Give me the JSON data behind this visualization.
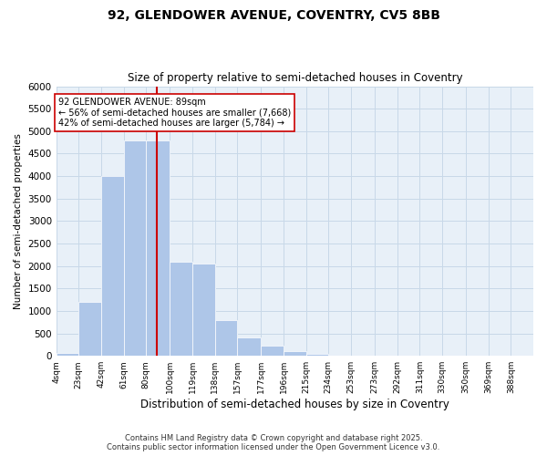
{
  "title1": "92, GLENDOWER AVENUE, COVENTRY, CV5 8BB",
  "title2": "Size of property relative to semi-detached houses in Coventry",
  "xlabel": "Distribution of semi-detached houses by size in Coventry",
  "ylabel": "Number of semi-detached properties",
  "footer": "Contains HM Land Registry data © Crown copyright and database right 2025.\nContains public sector information licensed under the Open Government Licence v3.0.",
  "bin_labels": [
    "4sqm",
    "23sqm",
    "42sqm",
    "61sqm",
    "80sqm",
    "100sqm",
    "119sqm",
    "138sqm",
    "157sqm",
    "177sqm",
    "196sqm",
    "215sqm",
    "234sqm",
    "253sqm",
    "273sqm",
    "292sqm",
    "311sqm",
    "330sqm",
    "350sqm",
    "369sqm",
    "388sqm"
  ],
  "bin_edges": [
    4,
    23,
    42,
    61,
    80,
    100,
    119,
    138,
    157,
    177,
    196,
    215,
    234,
    253,
    273,
    292,
    311,
    330,
    350,
    369,
    388
  ],
  "bar_values": [
    75,
    1200,
    4000,
    4800,
    4800,
    2100,
    2050,
    800,
    400,
    230,
    110,
    50,
    10,
    5,
    0,
    0,
    0,
    0,
    0,
    0
  ],
  "bar_color": "#aec6e8",
  "bar_edge_color": "#ffffff",
  "property_size": 89,
  "property_line_color": "#cc0000",
  "annotation_text": "92 GLENDOWER AVENUE: 89sqm\n← 56% of semi-detached houses are smaller (7,668)\n42% of semi-detached houses are larger (5,784) →",
  "annotation_box_color": "#ffffff",
  "annotation_box_edge": "#cc0000",
  "ylim": [
    0,
    6000
  ],
  "yticks": [
    0,
    500,
    1000,
    1500,
    2000,
    2500,
    3000,
    3500,
    4000,
    4500,
    5000,
    5500,
    6000
  ],
  "grid_color": "#c8d8e8",
  "background_color": "#e8f0f8"
}
